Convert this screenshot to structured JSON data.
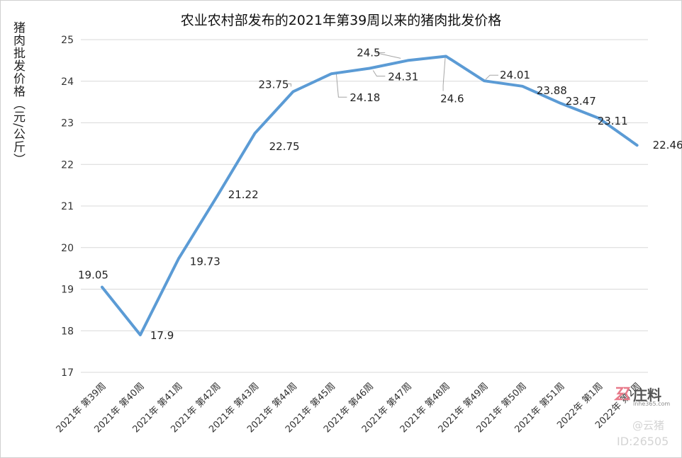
{
  "chart_data": {
    "type": "line",
    "title": "农业农村部发布的2021年第39周以来的猪肉批发价格",
    "ylabel": "猪肉批发价格（元/公斤）",
    "xlabel": "",
    "categories": [
      "2021年 第39周",
      "2021年 第40周",
      "2021年 第41周",
      "2021年 第42周",
      "2021年 第43周",
      "2021年 第44周",
      "2021年 第45周",
      "2021年 第46周",
      "2021年 第47周",
      "2021年 第48周",
      "2021年 第49周",
      "2021年 第50周",
      "2021年 第51周",
      "2022年 第1周",
      "2022年 第2周"
    ],
    "series": [
      {
        "values": [
          19.05,
          17.9,
          19.73,
          21.22,
          22.75,
          23.75,
          24.18,
          24.31,
          24.5,
          24.6,
          24.01,
          23.88,
          23.47,
          23.11,
          22.46
        ]
      }
    ],
    "data_labels": [
      "19.05",
      "17.9",
      "19.73",
      "21.22",
      "22.75",
      "23.75",
      "24.18",
      "24.31",
      "24.5",
      "24.6",
      "24.01",
      "23.88",
      "23.47",
      "23.11",
      "22.46"
    ],
    "ylim": [
      17,
      25
    ],
    "yticks": [
      "17",
      "18",
      "19",
      "20",
      "21",
      "22",
      "23",
      "24",
      "25"
    ],
    "grid": true,
    "line_color": "#5b9bd5"
  },
  "watermark": {
    "logo_text": "庄料",
    "site": "lnhe365.com",
    "account": "@云猪",
    "id": "ID:26505"
  }
}
